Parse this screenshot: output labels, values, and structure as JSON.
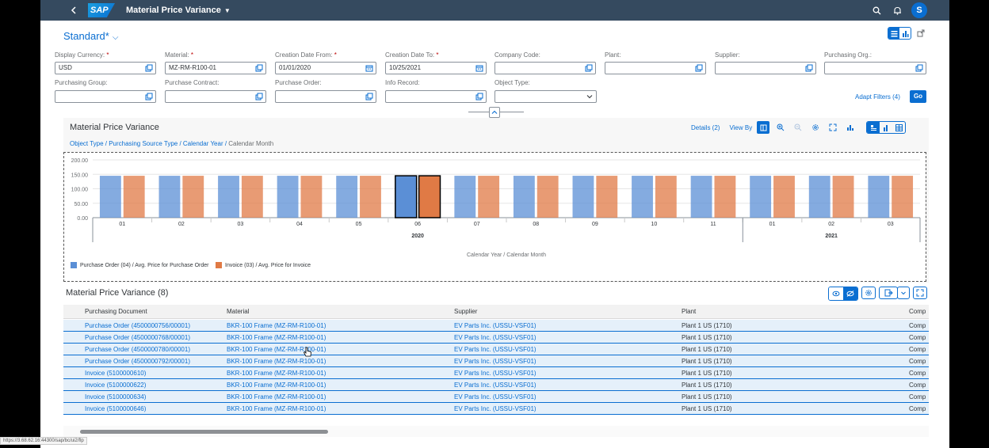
{
  "shell": {
    "back_icon": "chevron-left-icon",
    "logo": "SAP",
    "app_title": "Material Price Variance",
    "avatar_initial": "S"
  },
  "header": {
    "variant_name": "Standard*"
  },
  "filters": {
    "display_currency": {
      "label": "Display Currency:",
      "required": "*",
      "value": "USD"
    },
    "material": {
      "label": "Material:",
      "required": "*",
      "value": "MZ-RM-R100-01"
    },
    "creation_date_from": {
      "label": "Creation Date From:",
      "required": "*",
      "value": "01/01/2020"
    },
    "creation_date_to": {
      "label": "Creation Date To:",
      "required": "*",
      "value": "10/25/2021"
    },
    "company_code": {
      "label": "Company Code:",
      "value": ""
    },
    "plant": {
      "label": "Plant:",
      "value": ""
    },
    "supplier": {
      "label": "Supplier:",
      "value": ""
    },
    "purchasing_org": {
      "label": "Purchasing Org.:",
      "value": ""
    },
    "purchasing_group": {
      "label": "Purchasing Group:",
      "value": ""
    },
    "purchase_contract": {
      "label": "Purchase Contract:",
      "value": ""
    },
    "purchase_order": {
      "label": "Purchase Order:",
      "value": ""
    },
    "info_record": {
      "label": "Info Record:",
      "value": ""
    },
    "object_type": {
      "label": "Object Type:",
      "value": ""
    },
    "adapt_filters_label": "Adapt Filters (4)",
    "go_label": "Go"
  },
  "chart_section": {
    "title": "Material Price Variance",
    "breadcrumb_links": "Object Type / Purchasing Source Type / Calendar Year /",
    "breadcrumb_current": " Calendar Month",
    "details_label": "Details (2)",
    "view_by_label": "View By"
  },
  "chart_data": {
    "type": "bar",
    "categories": [
      "01",
      "02",
      "03",
      "04",
      "05",
      "06",
      "07",
      "08",
      "09",
      "10",
      "11",
      "01",
      "02",
      "03"
    ],
    "years": [
      {
        "label": "2020",
        "from": 0,
        "to": 10
      },
      {
        "label": "2021",
        "from": 11,
        "to": 13
      }
    ],
    "series": [
      {
        "name": "Purchase Order (04) / Avg. Price for Purchase Order",
        "color": "#5b8fd6",
        "values": [
          145,
          145,
          145,
          145,
          145,
          145,
          145,
          145,
          145,
          145,
          145,
          145,
          145,
          145
        ]
      },
      {
        "name": "Invoice (03) / Avg. Price for Invoice",
        "color": "#e07a45",
        "values": [
          145,
          145,
          145,
          145,
          145,
          145,
          145,
          145,
          145,
          145,
          145,
          145,
          145,
          145
        ]
      }
    ],
    "selected_index": 5,
    "yticks": [
      "200.00",
      "150.00",
      "100.00",
      "50.00",
      "0.00"
    ],
    "ylim": [
      0,
      200
    ],
    "xlabel": "Calendar Year / Calendar Month",
    "ylabel": ""
  },
  "table": {
    "title": "Material Price Variance (8)",
    "columns": [
      "Purchasing Document",
      "Material",
      "Supplier",
      "Plant",
      "Comp"
    ],
    "rows": [
      [
        "Purchase Order (4500000756/00001)",
        "BKR-100 Frame (MZ-RM-R100-01)",
        "EV Parts Inc. (USSU-VSF01)",
        "Plant 1 US (1710)",
        "Comp"
      ],
      [
        "Purchase Order (4500000768/00001)",
        "BKR-100 Frame (MZ-RM-R100-01)",
        "EV Parts Inc. (USSU-VSF01)",
        "Plant 1 US (1710)",
        "Comp"
      ],
      [
        "Purchase Order (4500000780/00001)",
        "BKR-100 Frame (MZ-RM-R100-01)",
        "EV Parts Inc. (USSU-VSF01)",
        "Plant 1 US (1710)",
        "Comp"
      ],
      [
        "Purchase Order (4500000792/00001)",
        "BKR-100 Frame (MZ-RM-R100-01)",
        "EV Parts Inc. (USSU-VSF01)",
        "Plant 1 US (1710)",
        "Comp"
      ],
      [
        "Invoice (5100000610)",
        "BKR-100 Frame (MZ-RM-R100-01)",
        "EV Parts Inc. (USSU-VSF01)",
        "Plant 1 US (1710)",
        "Comp"
      ],
      [
        "Invoice (5100000622)",
        "BKR-100 Frame (MZ-RM-R100-01)",
        "EV Parts Inc. (USSU-VSF01)",
        "Plant 1 US (1710)",
        "Comp"
      ],
      [
        "Invoice (5100000634)",
        "BKR-100 Frame (MZ-RM-R100-01)",
        "EV Parts Inc. (USSU-VSF01)",
        "Plant 1 US (1710)",
        "Comp"
      ],
      [
        "Invoice (5100000646)",
        "BKR-100 Frame (MZ-RM-R100-01)",
        "EV Parts Inc. (USSU-VSF01)",
        "Plant 1 US (1710)",
        "Comp"
      ]
    ]
  },
  "status_bar": {
    "url": "https://3.68.62.16:44300/sap/bc/ui2/flp"
  },
  "colors": {
    "shell": "#354a5f",
    "accent": "#0a6ed1",
    "po_series": "#5b8fd6",
    "invoice_series": "#e07a45"
  }
}
